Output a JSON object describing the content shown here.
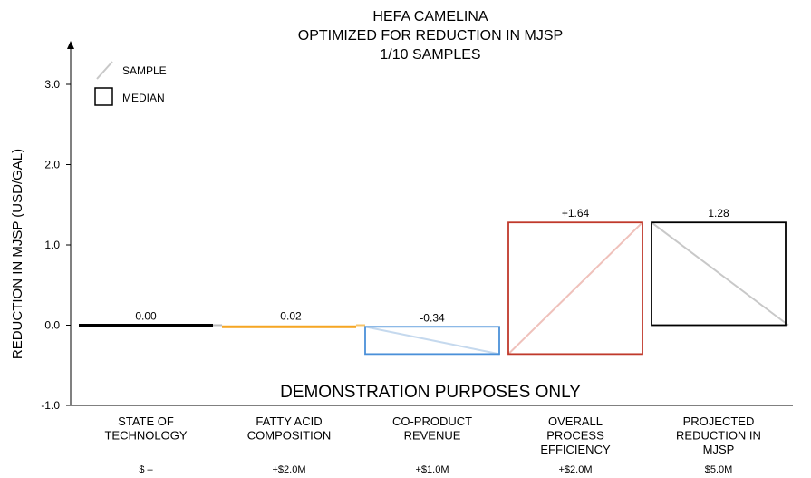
{
  "chart_data": {
    "type": "waterfall",
    "title_lines": [
      "HEFA CAMELINA",
      "OPTIMIZED FOR REDUCTION IN MJSP",
      "1/10 SAMPLES"
    ],
    "ylabel": "REDUCTION IN MJSP (USD/GAL)",
    "ylim": [
      -1.0,
      3.4
    ],
    "yticks": [
      -1.0,
      0.0,
      1.0,
      2.0,
      3.0
    ],
    "ytick_labels": [
      "-1.0",
      "0.0",
      "1.0",
      "2.0",
      "3.0"
    ],
    "legend": {
      "position": "top-left",
      "sample_label": "SAMPLE",
      "median_label": "MEDIAN"
    },
    "banner": "DEMONSTRATION PURPOSES ONLY",
    "steps": [
      {
        "category_lines": [
          "STATE OF",
          "TECHNOLOGY"
        ],
        "cost": "$ –",
        "label": "0.00",
        "start": 0.0,
        "end": 0.0,
        "color": "#000000",
        "sample_color": "#bbbbbb"
      },
      {
        "category_lines": [
          "FATTY ACID",
          "COMPOSITION"
        ],
        "cost": "+$2.0M",
        "label": "-0.02",
        "start": 0.0,
        "end": -0.02,
        "color": "#f5a623",
        "sample_color": "#f7c46a"
      },
      {
        "category_lines": [
          "CO-PRODUCT",
          "REVENUE"
        ],
        "cost": "+$1.0M",
        "label": "-0.34",
        "start": -0.02,
        "end": -0.36,
        "color": "#4a90d9",
        "sample_color": "#c5d9ee"
      },
      {
        "category_lines": [
          "OVERALL",
          "PROCESS",
          "EFFICIENCY"
        ],
        "cost": "+$2.0M",
        "label": "+1.64",
        "start": -0.36,
        "end": 1.28,
        "color": "#c0392b",
        "sample_color": "#efc1bb"
      },
      {
        "category_lines": [
          "PROJECTED",
          "REDUCTION IN",
          "MJSP"
        ],
        "cost": "$5.0M",
        "label": "1.28",
        "start": 0.0,
        "end": 1.28,
        "color": "#000000",
        "sample_color": "#c8c8c8",
        "total": true
      }
    ]
  }
}
